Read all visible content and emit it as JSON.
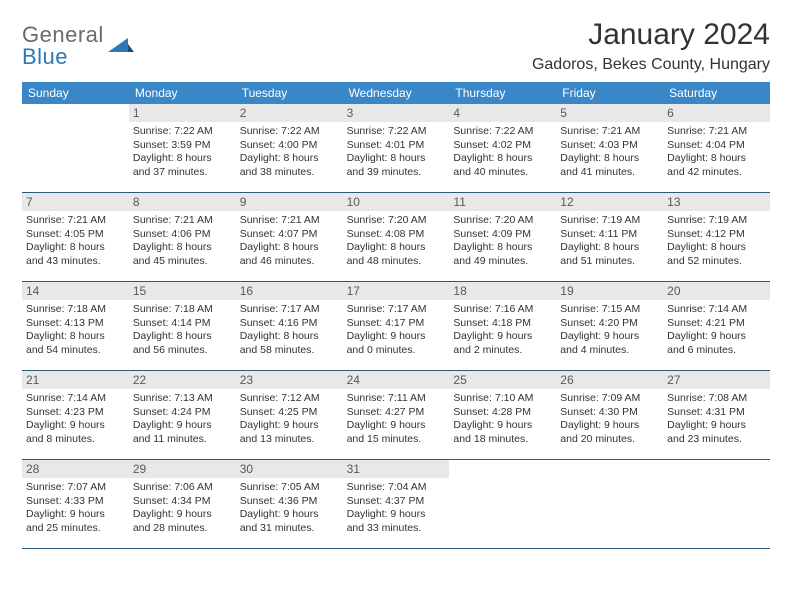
{
  "logo": {
    "textTop": "General",
    "textBottom": "Blue"
  },
  "title": "January 2024",
  "location": "Gadoros, Bekes County, Hungary",
  "colors": {
    "headerBg": "#3a87c8",
    "headerText": "#ffffff",
    "dayNumBg": "#e8e8e8",
    "borderColor": "#2e5a7a",
    "logoBlue": "#2e77b8",
    "logoGray": "#6b6b6b"
  },
  "weekdays": [
    "Sunday",
    "Monday",
    "Tuesday",
    "Wednesday",
    "Thursday",
    "Friday",
    "Saturday"
  ],
  "weeks": [
    [
      {
        "n": "",
        "sr": "",
        "ss": "",
        "dl": ""
      },
      {
        "n": "1",
        "sr": "Sunrise: 7:22 AM",
        "ss": "Sunset: 3:59 PM",
        "dl": "Daylight: 8 hours and 37 minutes."
      },
      {
        "n": "2",
        "sr": "Sunrise: 7:22 AM",
        "ss": "Sunset: 4:00 PM",
        "dl": "Daylight: 8 hours and 38 minutes."
      },
      {
        "n": "3",
        "sr": "Sunrise: 7:22 AM",
        "ss": "Sunset: 4:01 PM",
        "dl": "Daylight: 8 hours and 39 minutes."
      },
      {
        "n": "4",
        "sr": "Sunrise: 7:22 AM",
        "ss": "Sunset: 4:02 PM",
        "dl": "Daylight: 8 hours and 40 minutes."
      },
      {
        "n": "5",
        "sr": "Sunrise: 7:21 AM",
        "ss": "Sunset: 4:03 PM",
        "dl": "Daylight: 8 hours and 41 minutes."
      },
      {
        "n": "6",
        "sr": "Sunrise: 7:21 AM",
        "ss": "Sunset: 4:04 PM",
        "dl": "Daylight: 8 hours and 42 minutes."
      }
    ],
    [
      {
        "n": "7",
        "sr": "Sunrise: 7:21 AM",
        "ss": "Sunset: 4:05 PM",
        "dl": "Daylight: 8 hours and 43 minutes."
      },
      {
        "n": "8",
        "sr": "Sunrise: 7:21 AM",
        "ss": "Sunset: 4:06 PM",
        "dl": "Daylight: 8 hours and 45 minutes."
      },
      {
        "n": "9",
        "sr": "Sunrise: 7:21 AM",
        "ss": "Sunset: 4:07 PM",
        "dl": "Daylight: 8 hours and 46 minutes."
      },
      {
        "n": "10",
        "sr": "Sunrise: 7:20 AM",
        "ss": "Sunset: 4:08 PM",
        "dl": "Daylight: 8 hours and 48 minutes."
      },
      {
        "n": "11",
        "sr": "Sunrise: 7:20 AM",
        "ss": "Sunset: 4:09 PM",
        "dl": "Daylight: 8 hours and 49 minutes."
      },
      {
        "n": "12",
        "sr": "Sunrise: 7:19 AM",
        "ss": "Sunset: 4:11 PM",
        "dl": "Daylight: 8 hours and 51 minutes."
      },
      {
        "n": "13",
        "sr": "Sunrise: 7:19 AM",
        "ss": "Sunset: 4:12 PM",
        "dl": "Daylight: 8 hours and 52 minutes."
      }
    ],
    [
      {
        "n": "14",
        "sr": "Sunrise: 7:18 AM",
        "ss": "Sunset: 4:13 PM",
        "dl": "Daylight: 8 hours and 54 minutes."
      },
      {
        "n": "15",
        "sr": "Sunrise: 7:18 AM",
        "ss": "Sunset: 4:14 PM",
        "dl": "Daylight: 8 hours and 56 minutes."
      },
      {
        "n": "16",
        "sr": "Sunrise: 7:17 AM",
        "ss": "Sunset: 4:16 PM",
        "dl": "Daylight: 8 hours and 58 minutes."
      },
      {
        "n": "17",
        "sr": "Sunrise: 7:17 AM",
        "ss": "Sunset: 4:17 PM",
        "dl": "Daylight: 9 hours and 0 minutes."
      },
      {
        "n": "18",
        "sr": "Sunrise: 7:16 AM",
        "ss": "Sunset: 4:18 PM",
        "dl": "Daylight: 9 hours and 2 minutes."
      },
      {
        "n": "19",
        "sr": "Sunrise: 7:15 AM",
        "ss": "Sunset: 4:20 PM",
        "dl": "Daylight: 9 hours and 4 minutes."
      },
      {
        "n": "20",
        "sr": "Sunrise: 7:14 AM",
        "ss": "Sunset: 4:21 PM",
        "dl": "Daylight: 9 hours and 6 minutes."
      }
    ],
    [
      {
        "n": "21",
        "sr": "Sunrise: 7:14 AM",
        "ss": "Sunset: 4:23 PM",
        "dl": "Daylight: 9 hours and 8 minutes."
      },
      {
        "n": "22",
        "sr": "Sunrise: 7:13 AM",
        "ss": "Sunset: 4:24 PM",
        "dl": "Daylight: 9 hours and 11 minutes."
      },
      {
        "n": "23",
        "sr": "Sunrise: 7:12 AM",
        "ss": "Sunset: 4:25 PM",
        "dl": "Daylight: 9 hours and 13 minutes."
      },
      {
        "n": "24",
        "sr": "Sunrise: 7:11 AM",
        "ss": "Sunset: 4:27 PM",
        "dl": "Daylight: 9 hours and 15 minutes."
      },
      {
        "n": "25",
        "sr": "Sunrise: 7:10 AM",
        "ss": "Sunset: 4:28 PM",
        "dl": "Daylight: 9 hours and 18 minutes."
      },
      {
        "n": "26",
        "sr": "Sunrise: 7:09 AM",
        "ss": "Sunset: 4:30 PM",
        "dl": "Daylight: 9 hours and 20 minutes."
      },
      {
        "n": "27",
        "sr": "Sunrise: 7:08 AM",
        "ss": "Sunset: 4:31 PM",
        "dl": "Daylight: 9 hours and 23 minutes."
      }
    ],
    [
      {
        "n": "28",
        "sr": "Sunrise: 7:07 AM",
        "ss": "Sunset: 4:33 PM",
        "dl": "Daylight: 9 hours and 25 minutes."
      },
      {
        "n": "29",
        "sr": "Sunrise: 7:06 AM",
        "ss": "Sunset: 4:34 PM",
        "dl": "Daylight: 9 hours and 28 minutes."
      },
      {
        "n": "30",
        "sr": "Sunrise: 7:05 AM",
        "ss": "Sunset: 4:36 PM",
        "dl": "Daylight: 9 hours and 31 minutes."
      },
      {
        "n": "31",
        "sr": "Sunrise: 7:04 AM",
        "ss": "Sunset: 4:37 PM",
        "dl": "Daylight: 9 hours and 33 minutes."
      },
      {
        "n": "",
        "sr": "",
        "ss": "",
        "dl": ""
      },
      {
        "n": "",
        "sr": "",
        "ss": "",
        "dl": ""
      },
      {
        "n": "",
        "sr": "",
        "ss": "",
        "dl": ""
      }
    ]
  ]
}
